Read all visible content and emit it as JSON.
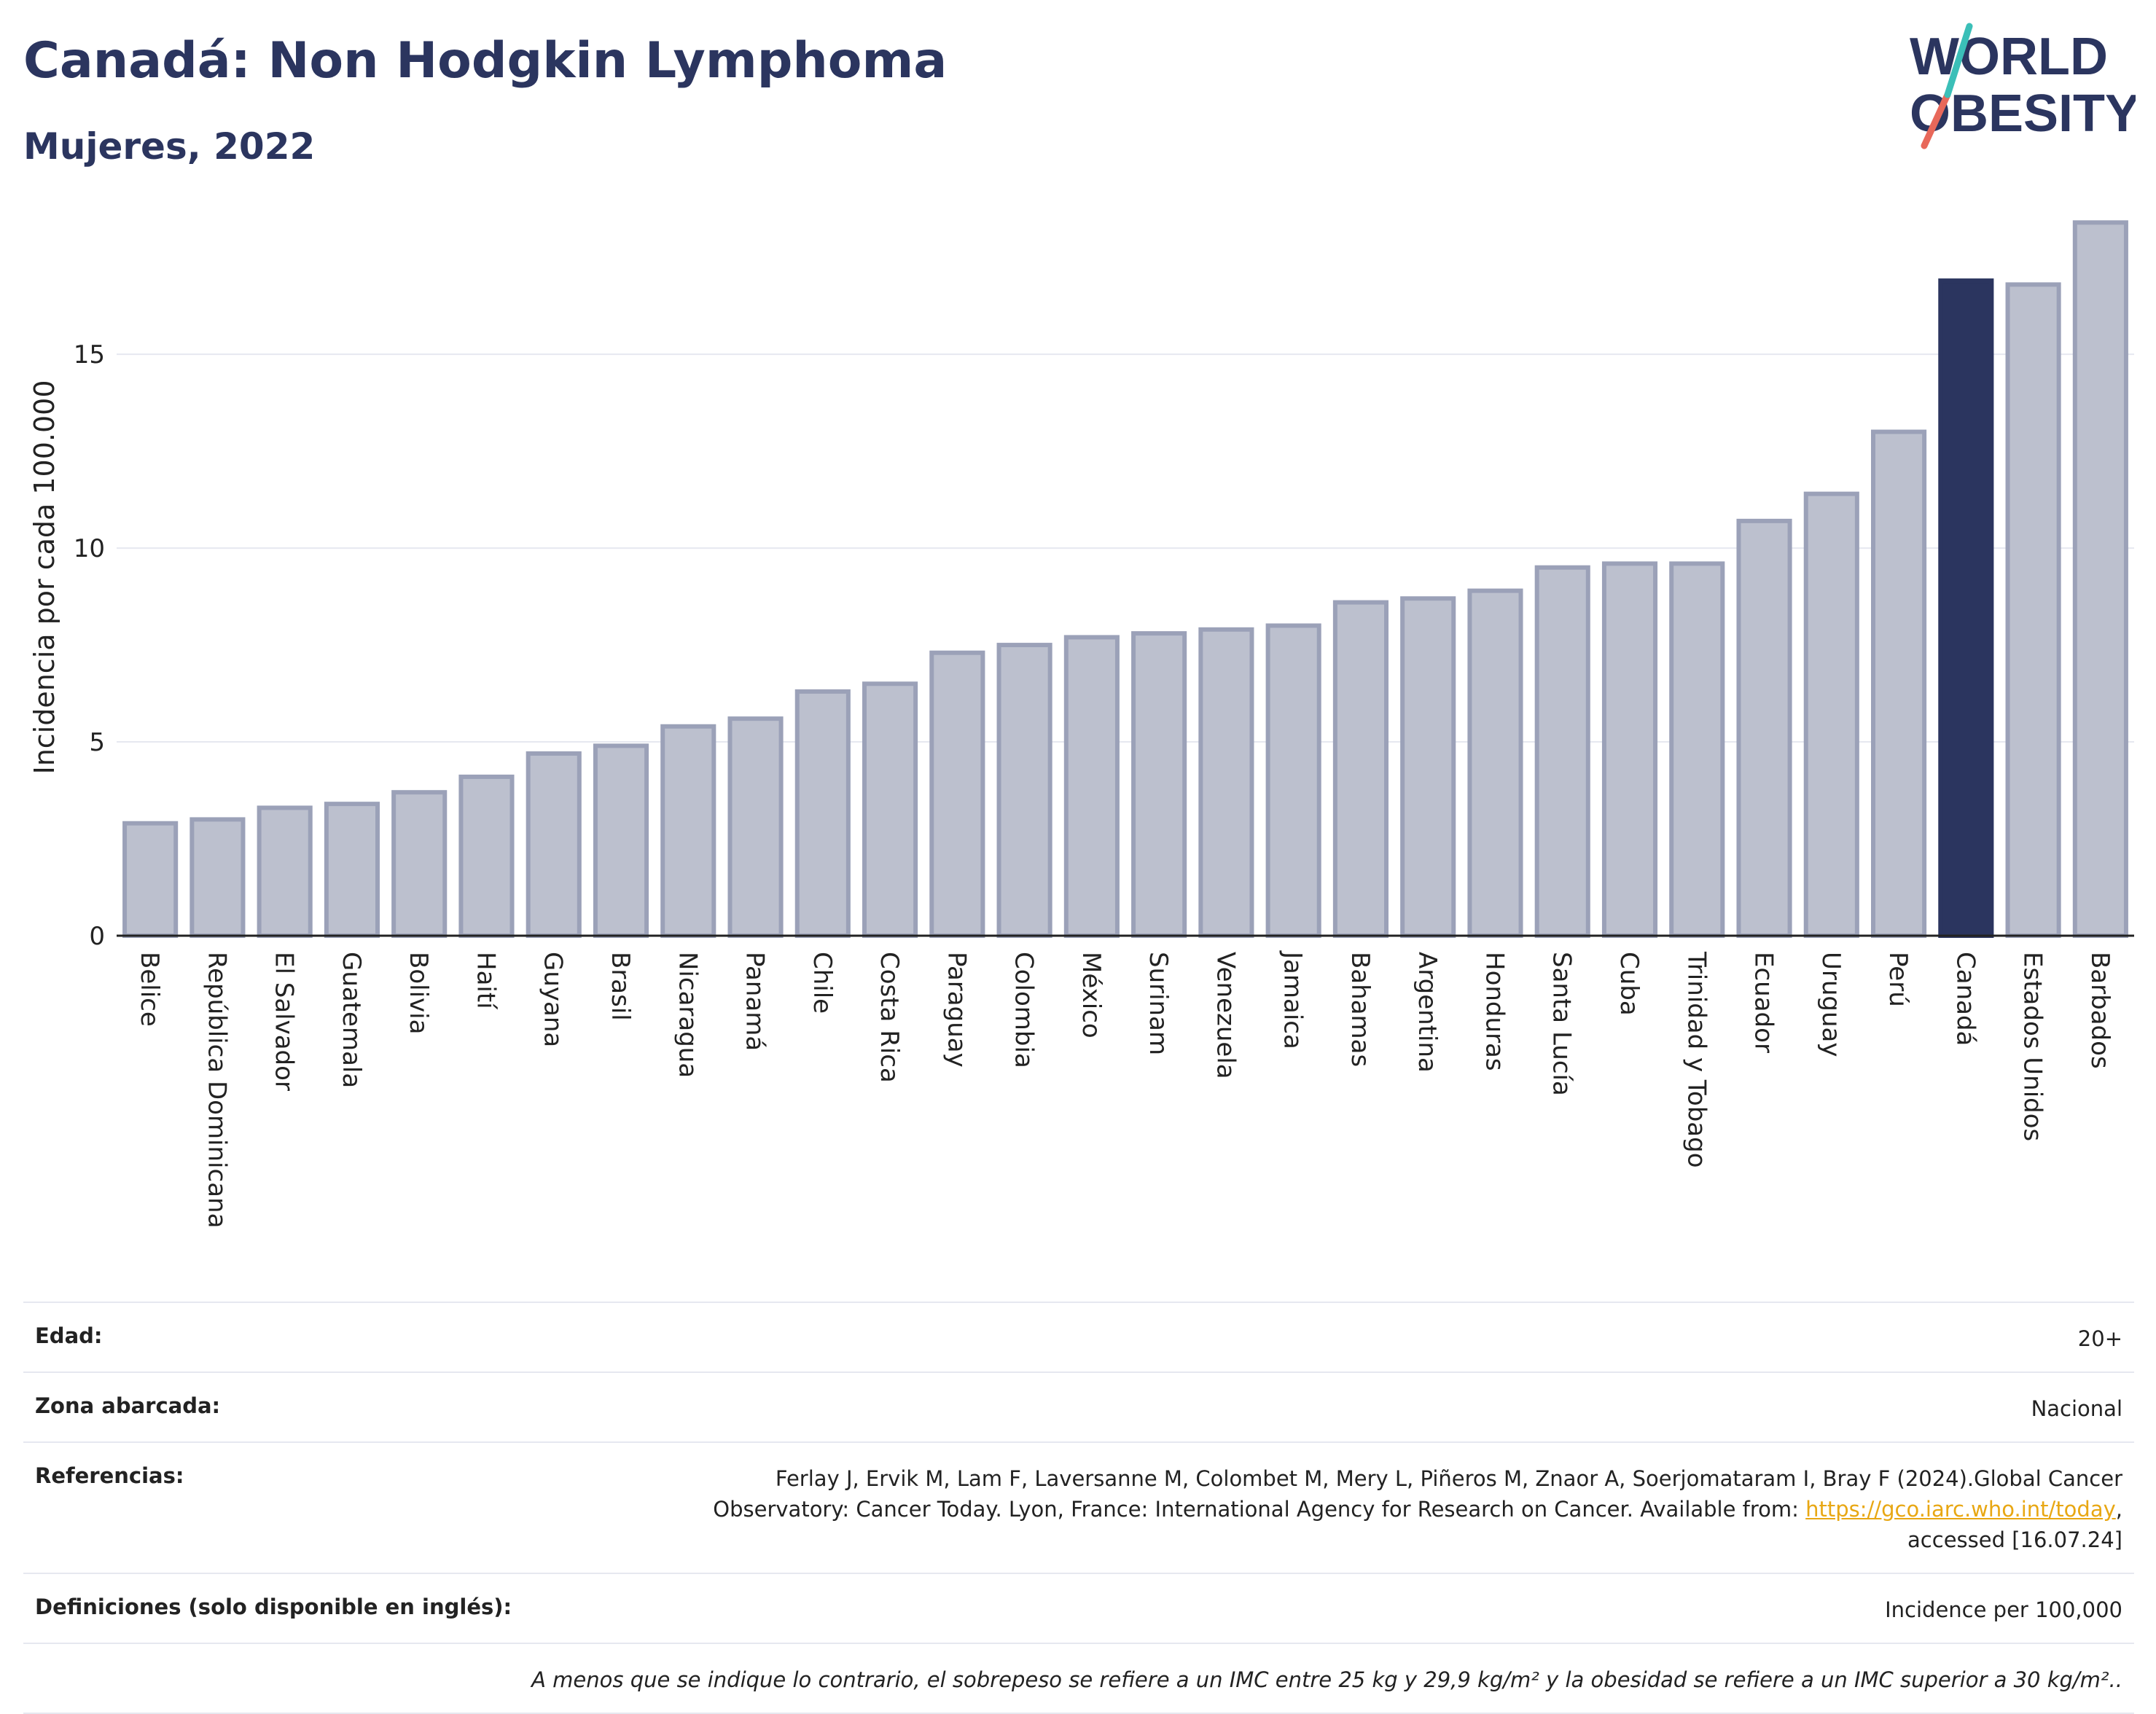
{
  "header": {
    "title": "Canadá: Non Hodgkin Lymphoma",
    "subtitle": "Mujeres, 2022"
  },
  "logo": {
    "line1": "WORLD",
    "line2": "OBESITY",
    "icon": "world-obesity-logo"
  },
  "colors": {
    "bar": "#bcc0ce",
    "bar_edge": "#9ba1b8",
    "highlight": "#2b355f",
    "grid": "#e6e8f0",
    "text": "#222222",
    "brand": "#2b355f",
    "logo_red": "#e8685a",
    "logo_teal": "#3bbfb8",
    "link": "#e8a713"
  },
  "chart_data": {
    "type": "bar",
    "title": "Canadá: Non Hodgkin Lymphoma",
    "subtitle": "Mujeres, 2022",
    "xlabel": "",
    "ylabel": "Incidencia por cada 100.000",
    "ylim": [
      0,
      18.5
    ],
    "yticks": [
      0,
      5,
      10,
      15
    ],
    "grid": true,
    "highlight": "Canadá",
    "categories": [
      "Belice",
      "República Dominicana",
      "El Salvador",
      "Guatemala",
      "Bolivia",
      "Haití",
      "Guyana",
      "Brasil",
      "Nicaragua",
      "Panamá",
      "Chile",
      "Costa Rica",
      "Paraguay",
      "Colombia",
      "México",
      "Surinam",
      "Venezuela",
      "Jamaica",
      "Bahamas",
      "Argentina",
      "Honduras",
      "Santa Lucía",
      "Cuba",
      "Trinidad y Tobago",
      "Ecuador",
      "Uruguay",
      "Perú",
      "Canadá",
      "Estados Unidos",
      "Barbados"
    ],
    "values": [
      2.9,
      3.0,
      3.3,
      3.4,
      3.7,
      4.1,
      4.7,
      4.9,
      5.4,
      5.6,
      6.3,
      6.5,
      7.3,
      7.5,
      7.7,
      7.8,
      7.9,
      8.0,
      8.6,
      8.7,
      8.9,
      9.5,
      9.6,
      9.6,
      10.7,
      11.4,
      13.0,
      16.9,
      16.8,
      18.4
    ]
  },
  "info": {
    "age_label": "Edad:",
    "age_value": "20+",
    "zone_label": "Zona abarcada:",
    "zone_value": "Nacional",
    "refs_label": "Referencias:",
    "refs_text_line1": "Ferlay J, Ervik M, Lam F, Laversanne M, Colombet M, Mery L, Piñeros M, Znaor A, Soerjomataram I, Bray F (2024).Global Cancer",
    "refs_text_line2": "Observatory: Cancer Today. Lyon, France: International Agency for Research on Cancer. Available from: ",
    "refs_link": "https://gco.iarc.who.int/today",
    "refs_after_link": ",",
    "refs_text_line3": "accessed [16.07.24]",
    "defs_label": "Definiciones (solo disponible en inglés):",
    "defs_value": "Incidence per 100,000",
    "note": "A menos que se indique lo contrario, el sobrepeso se refiere a un IMC entre 25 kg y 29,9 kg/m² y la obesidad se refiere a un IMC superior a 30 kg/m².."
  }
}
